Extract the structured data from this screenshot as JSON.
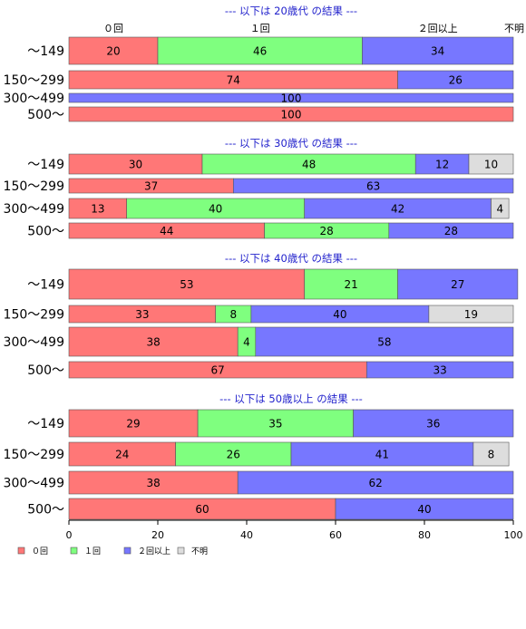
{
  "chart_data": {
    "type": "bar",
    "orientation": "horizontal",
    "stacked": true,
    "xlim": [
      0,
      100
    ],
    "x_ticks": [
      "0",
      "20",
      "40",
      "60",
      "80",
      "100"
    ],
    "colors": [
      "#ff7777",
      "#7fff7f",
      "#7777ff",
      "#dddddd"
    ],
    "top_labels": [
      {
        "text": "０回",
        "x": 10
      },
      {
        "text": "１回",
        "x": 43
      },
      {
        "text": "２回以上",
        "x": 83
      },
      {
        "text": "不明",
        "x": 100
      }
    ],
    "legend": [
      "０回",
      "１回",
      "２回以上",
      "不明"
    ],
    "legend_position": "bottom-left",
    "panels": [
      {
        "title": "--- 以下は 20歳代 の結果 ---",
        "rows": [
          {
            "label": "〜149",
            "values": [
              20,
              46,
              34,
              0
            ]
          },
          {
            "label": "150〜299",
            "values": [
              74,
              0,
              26,
              0
            ]
          },
          {
            "label": "300〜499",
            "values": [
              0,
              0,
              100,
              0
            ]
          },
          {
            "label": "500〜",
            "values": [
              100,
              0,
              0,
              0
            ]
          }
        ]
      },
      {
        "title": "--- 以下は 30歳代 の結果 ---",
        "rows": [
          {
            "label": "〜149",
            "values": [
              30,
              48,
              12,
              10
            ]
          },
          {
            "label": "150〜299",
            "values": [
              37,
              0,
              63,
              0
            ]
          },
          {
            "label": "300〜499",
            "values": [
              13,
              40,
              42,
              4
            ]
          },
          {
            "label": "500〜",
            "values": [
              44,
              28,
              28,
              0
            ]
          }
        ]
      },
      {
        "title": "--- 以下は 40歳代 の結果 ---",
        "rows": [
          {
            "label": "〜149",
            "values": [
              53,
              21,
              27,
              0
            ]
          },
          {
            "label": "150〜299",
            "values": [
              33,
              8,
              40,
              19
            ]
          },
          {
            "label": "300〜499",
            "values": [
              38,
              4,
              58,
              0
            ]
          },
          {
            "label": "500〜",
            "values": [
              67,
              0,
              33,
              0
            ]
          }
        ]
      },
      {
        "title": "--- 以下は 50歳以上 の結果 ---",
        "rows": [
          {
            "label": "〜149",
            "values": [
              29,
              35,
              36,
              0
            ]
          },
          {
            "label": "150〜299",
            "values": [
              24,
              26,
              41,
              8
            ]
          },
          {
            "label": "300〜499",
            "values": [
              38,
              0,
              62,
              0
            ]
          },
          {
            "label": "500〜",
            "values": [
              60,
              0,
              40,
              0
            ]
          }
        ]
      }
    ]
  }
}
